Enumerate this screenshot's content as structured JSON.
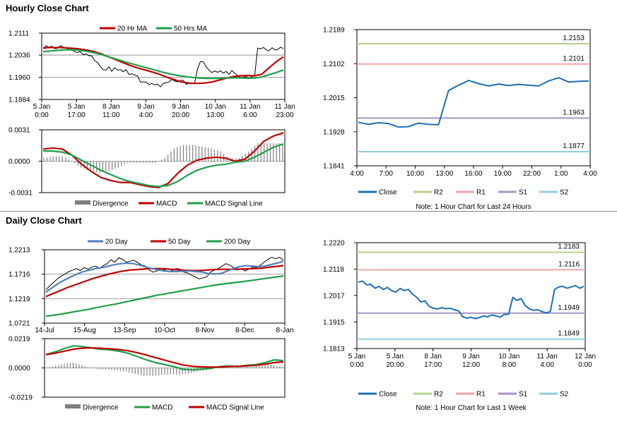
{
  "sections": {
    "hourly_title": "Hourly Close Chart",
    "daily_title": "Daily Close Chart"
  },
  "colors": {
    "ma_short": "#c00000",
    "ma_long": "#1fa04a",
    "ma_mid": "#4f81bd",
    "price": "#000000",
    "divergence": "#808080",
    "close": "#1f6fb5",
    "r2": "#b9d08a",
    "r1": "#f0a6a6",
    "s1": "#a894c8",
    "s2": "#93cde0"
  },
  "chart_data": [
    {
      "id": "hourly_price",
      "type": "line",
      "legend": [
        "20 Hr MA",
        "50 Hrs MA"
      ],
      "y_ticks": [
        "1.2111",
        "1.2036",
        "1.1960",
        "1.1884"
      ],
      "ylim": [
        1.1884,
        1.2111
      ],
      "x_ticks": [
        [
          "5 Jan",
          "0:00"
        ],
        [
          "5 Jan",
          "17:00"
        ],
        [
          "8 Jan",
          "11:00"
        ],
        [
          "9 Jan",
          "4:00"
        ],
        [
          "9 Jan",
          "20:00"
        ],
        [
          "10 Jan",
          "13:00"
        ],
        [
          "11 Jan",
          "6:00"
        ],
        [
          "11 Jan",
          "23:00"
        ]
      ],
      "close": [
        1.2058,
        1.2068,
        1.2063,
        1.2066,
        1.2058,
        1.2059,
        1.2068,
        1.2064,
        1.2061,
        1.2055,
        1.2056,
        1.2047,
        1.2045,
        1.2048,
        1.2037,
        1.204,
        1.2034,
        1.2033,
        1.2017,
        1.2011,
        1.1997,
        1.1986,
        1.1985,
        1.1996,
        1.198,
        1.1993,
        1.1985,
        1.1986,
        1.1979,
        1.1986,
        1.197,
        1.1972,
        1.1967,
        1.1965,
        1.1944,
        1.1944,
        1.1944,
        1.1935,
        1.1939,
        1.1934,
        1.1937,
        1.1927,
        1.1939,
        1.1941,
        1.1944,
        1.1953,
        1.1947,
        1.1944,
        1.1949,
        1.195,
        1.1936,
        1.1939,
        1.1938,
        1.1942,
        1.199,
        1.2014,
        1.2013,
        1.1995,
        1.1985,
        1.1976,
        1.1982,
        1.1977,
        1.1982,
        1.1974,
        1.198,
        1.197,
        1.1983,
        1.1974,
        1.1966,
        1.1959,
        1.196,
        1.1962,
        1.1955,
        1.1962,
        1.1969,
        1.206,
        1.2057,
        1.2062,
        1.2054,
        1.2051,
        1.2061,
        1.2054,
        1.2055,
        1.2063,
        1.2058
      ],
      "ma20": [
        1.206,
        1.2062,
        1.2062,
        1.2061,
        1.2059,
        1.2057,
        1.2053,
        1.2048,
        1.204,
        1.203,
        1.202,
        1.201,
        1.2,
        1.1992,
        1.1985,
        1.1978,
        1.197,
        1.196,
        1.1952,
        1.1944,
        1.194,
        1.1939,
        1.194,
        1.1943,
        1.1949,
        1.1956,
        1.1962,
        1.1965,
        1.1966,
        1.1965,
        1.197,
        1.1992,
        1.2013,
        1.203
      ],
      "ma50": [
        1.2048,
        1.205,
        1.2052,
        1.2054,
        1.2054,
        1.2052,
        1.2048,
        1.2043,
        1.2036,
        1.2028,
        1.202,
        1.2012,
        1.2005,
        1.1998,
        1.1991,
        1.1984,
        1.1977,
        1.1971,
        1.1966,
        1.1962,
        1.1959,
        1.1957,
        1.1956,
        1.1956,
        1.1957,
        1.1958,
        1.1958,
        1.1957,
        1.1957,
        1.196,
        1.1968,
        1.1976,
        1.1985
      ]
    },
    {
      "id": "hourly_macd",
      "type": "line",
      "legend": [
        "Divergence",
        "MACD",
        "MACD Signal Line"
      ],
      "y_ticks": [
        "0.0031",
        "0.0000",
        "-0.0031"
      ],
      "ylim": [
        -0.0031,
        0.0031
      ],
      "macd": [
        0.0012,
        0.0013,
        0.0012,
        0.0006,
        -0.0003,
        -0.001,
        -0.0016,
        -0.0019,
        -0.0021,
        -0.0021,
        -0.0023,
        -0.0025,
        -0.0026,
        -0.0022,
        -0.0012,
        -0.0004,
        0.0001,
        0.0003,
        0.0004,
        0.0003,
        0.0,
        0.0002,
        0.001,
        0.002,
        0.0025,
        0.0028
      ],
      "signal": [
        0.001,
        0.001,
        0.0009,
        0.0006,
        0.0001,
        -0.0004,
        -0.0009,
        -0.0013,
        -0.0017,
        -0.002,
        -0.0022,
        -0.0024,
        -0.0025,
        -0.0024,
        -0.002,
        -0.0014,
        -0.0009,
        -0.0006,
        -0.0004,
        -0.0003,
        -0.0001,
        0.0,
        0.0004,
        0.0009,
        0.0014,
        0.0017
      ]
    },
    {
      "id": "hourly_pivots",
      "type": "line",
      "y_ticks": [
        "1.2189",
        "1.2102",
        "1.2015",
        "1.1928",
        "1.1841"
      ],
      "ylim": [
        1.1841,
        1.2189
      ],
      "x_ticks": [
        "4:00",
        "7:00",
        "10:00",
        "13:00",
        "16:00",
        "19:00",
        "22:00",
        "1:00",
        "4:00"
      ],
      "levels": {
        "R2": 1.2153,
        "R1": 1.2101,
        "S1": 1.1963,
        "S2": 1.1877
      },
      "level_labels": {
        "R2": "1.2153",
        "R1": "1.2101",
        "S1": "1.1963",
        "S2": "1.1877"
      },
      "legend": [
        "Close",
        "R2",
        "R1",
        "S1",
        "S2"
      ],
      "note": "Note: 1 Hour Chart for Last 24 Hours",
      "close": [
        1.1952,
        1.1947,
        1.1951,
        1.1949,
        1.194,
        1.1941,
        1.195,
        1.1947,
        1.1946,
        1.2033,
        1.2047,
        1.2059,
        1.2051,
        1.2045,
        1.205,
        1.2046,
        1.2049,
        1.2047,
        1.2045,
        1.2058,
        1.2066,
        1.2055,
        1.2057,
        1.2058
      ]
    },
    {
      "id": "daily_price",
      "type": "line",
      "legend": [
        "20 Day",
        "50 Day",
        "200 Day"
      ],
      "y_ticks": [
        "1.2213",
        "1.1716",
        "1.1219",
        "1.0721"
      ],
      "ylim": [
        1.0721,
        1.2213
      ],
      "x_ticks": [
        "14-Jul",
        "15-Aug",
        "13-Sep",
        "10-Oct",
        "8-Nov",
        "8-Dec",
        "8-Jan"
      ],
      "close": [
        1.14,
        1.148,
        1.155,
        1.162,
        1.168,
        1.172,
        1.177,
        1.18,
        1.183,
        1.179,
        1.185,
        1.182,
        1.186,
        1.188,
        1.183,
        1.189,
        1.193,
        1.201,
        1.196,
        1.205,
        1.202,
        1.196,
        1.198,
        1.2,
        1.195,
        1.19,
        1.188,
        1.18,
        1.176,
        1.178,
        1.183,
        1.18,
        1.177,
        1.179,
        1.183,
        1.182,
        1.176,
        1.174,
        1.17,
        1.166,
        1.162,
        1.164,
        1.166,
        1.176,
        1.18,
        1.183,
        1.188,
        1.193,
        1.19,
        1.185,
        1.18,
        1.183,
        1.178,
        1.182,
        1.186,
        1.185,
        1.19,
        1.196,
        1.202,
        1.206,
        1.203,
        1.206,
        1.2
      ],
      "ma20": [
        1.135,
        1.144,
        1.153,
        1.16,
        1.166,
        1.172,
        1.177,
        1.18,
        1.183,
        1.185,
        1.188,
        1.191,
        1.193,
        1.194,
        1.193,
        1.19,
        1.186,
        1.183,
        1.18,
        1.178,
        1.177,
        1.177,
        1.178,
        1.178,
        1.177,
        1.176,
        1.173,
        1.172,
        1.173,
        1.178,
        1.183,
        1.187,
        1.189,
        1.188,
        1.187,
        1.188,
        1.191,
        1.194,
        1.198
      ],
      "ma50": [
        1.126,
        1.132,
        1.138,
        1.144,
        1.149,
        1.154,
        1.159,
        1.164,
        1.168,
        1.172,
        1.175,
        1.178,
        1.18,
        1.181,
        1.182,
        1.183,
        1.183,
        1.1825,
        1.1815,
        1.1805,
        1.1795,
        1.179,
        1.179,
        1.18,
        1.181,
        1.1815,
        1.1815,
        1.1815,
        1.182,
        1.1825,
        1.183,
        1.184,
        1.186,
        1.1875,
        1.189
      ],
      "ma200": [
        1.086,
        1.09,
        1.095,
        1.1,
        1.106,
        1.111,
        1.117,
        1.123,
        1.129,
        1.134,
        1.139,
        1.144,
        1.149,
        1.153,
        1.156,
        1.16,
        1.164,
        1.168
      ]
    },
    {
      "id": "daily_macd",
      "type": "line",
      "legend": [
        "Divergence",
        "MACD",
        "MACD Signal Line"
      ],
      "y_ticks": [
        "0.0219",
        "0.0000",
        "-0.0219"
      ],
      "ylim": [
        -0.0219,
        0.0219
      ],
      "macd": [
        0.01,
        0.012,
        0.0145,
        0.0165,
        0.016,
        0.015,
        0.014,
        0.0135,
        0.0125,
        0.011,
        0.0085,
        0.006,
        0.004,
        0.0025,
        0.001,
        -0.001,
        -0.0015,
        -0.001,
        -0.0005,
        0.001,
        0.0015,
        0.001,
        0.002,
        0.0025,
        0.004,
        0.006,
        0.0055
      ],
      "signal": [
        0.01,
        0.011,
        0.0125,
        0.014,
        0.0148,
        0.015,
        0.0147,
        0.0143,
        0.0137,
        0.0128,
        0.0114,
        0.0096,
        0.0077,
        0.0058,
        0.004,
        0.0022,
        0.0012,
        0.0008,
        0.0006,
        0.0007,
        0.001,
        0.0012,
        0.0015,
        0.002,
        0.0028,
        0.004,
        0.0045
      ]
    },
    {
      "id": "daily_pivots",
      "type": "line",
      "y_ticks": [
        "1.2220",
        "1.2118",
        "1.2017",
        "1.1915",
        "1.1813"
      ],
      "ylim": [
        1.1813,
        1.222
      ],
      "x_ticks": [
        [
          "5 Jan",
          "0:00"
        ],
        [
          "5 Jan",
          "20:00"
        ],
        [
          "8 Jan",
          "17:00"
        ],
        [
          "9 Jan",
          "12:00"
        ],
        [
          "10 Jan",
          "8:00"
        ],
        [
          "11 Jan",
          "4:00"
        ],
        [
          "12 Jan",
          "0:00"
        ]
      ],
      "levels": {
        "R2": 1.2183,
        "R1": 1.2116,
        "S1": 1.1949,
        "S2": 1.1849
      },
      "level_labels": {
        "R2": "1.2183",
        "R1": "1.2116",
        "S1": "1.1949",
        "S2": "1.1849"
      },
      "legend": [
        "Close",
        "R2",
        "R1",
        "S1",
        "S2"
      ],
      "note": "Note: 1 Hour Chart for Last 1 Week",
      "close": [
        1.2068,
        1.2072,
        1.2058,
        1.206,
        1.2045,
        1.2052,
        1.204,
        1.2048,
        1.2035,
        1.203,
        1.2044,
        1.2036,
        1.204,
        1.2022,
        1.201,
        1.1992,
        1.1996,
        1.1975,
        1.1968,
        1.1965,
        1.197,
        1.1966,
        1.1968,
        1.1962,
        1.1958,
        1.1935,
        1.193,
        1.1933,
        1.1928,
        1.1932,
        1.1938,
        1.1935,
        1.1942,
        1.1938,
        1.1934,
        1.1944,
        1.1945,
        1.201,
        1.1998,
        1.2005,
        1.1978,
        1.1965,
        1.196,
        1.1962,
        1.1955,
        1.195,
        1.1955,
        1.204,
        1.205,
        1.2052,
        1.2045,
        1.205,
        1.2055,
        1.2045,
        1.2052
      ]
    }
  ]
}
